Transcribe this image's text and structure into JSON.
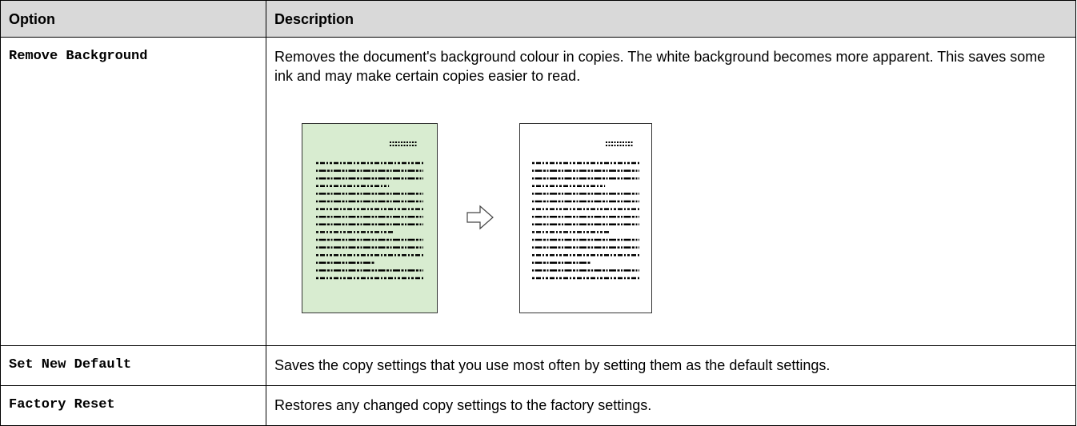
{
  "header": {
    "option": "Option",
    "description": "Description"
  },
  "table": {
    "rows": [
      [
        "Remove Background",
        "Removes the document's background colour in copies. The white background becomes more apparent. This saves some ink and may make certain copies easier to read."
      ],
      [
        "Set New Default",
        "Saves the copy settings that you use most often by setting them as the default settings."
      ],
      [
        "Factory Reset",
        "Restores any changed copy settings to the factory settings."
      ]
    ]
  }
}
